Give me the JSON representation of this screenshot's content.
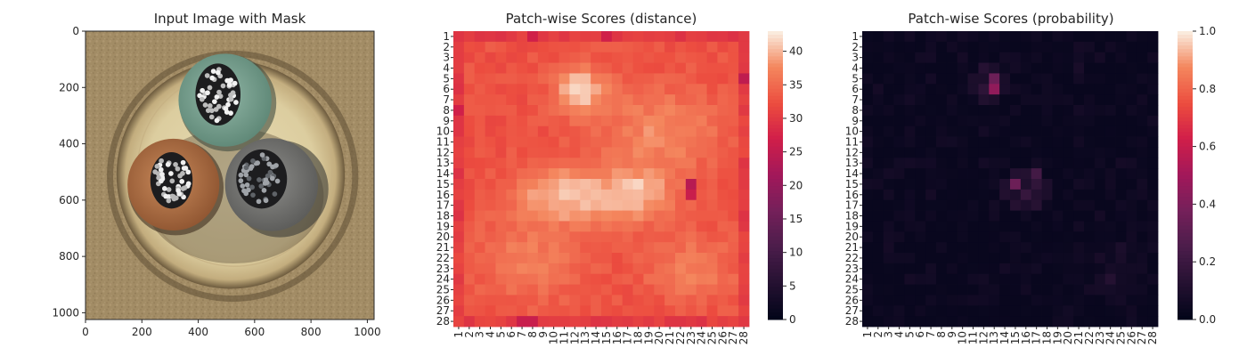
{
  "chart_data": [
    {
      "type": "image",
      "title": "Input Image with Mask",
      "x_ticks": [
        "0",
        "200",
        "400",
        "600",
        "800",
        "1000"
      ],
      "y_ticks": [
        "0",
        "200",
        "400",
        "600",
        "800",
        "1000"
      ],
      "xlim": [
        0,
        1024
      ],
      "ylim": [
        1024,
        0
      ],
      "content": "metal cable cross-section: three insulated conductors (green, orange-brown, grey) inside a beige outer sheath on a brown textured background",
      "colors": {
        "background": "#a08a63",
        "ring_outer": "#c9b686",
        "ring_inner": "#ddcfa3",
        "conductor_green": "#7fa597",
        "conductor_orange": "#b9794d",
        "conductor_grey": "#7d7d7b",
        "wires": "#d9d9d9"
      }
    },
    {
      "type": "heatmap",
      "title": "Patch-wise Scores (distance)",
      "rows": 28,
      "cols": 28,
      "row_labels": [
        "1",
        "2",
        "3",
        "4",
        "5",
        "6",
        "7",
        "8",
        "9",
        "10",
        "11",
        "12",
        "13",
        "14",
        "15",
        "16",
        "17",
        "18",
        "19",
        "20",
        "21",
        "22",
        "23",
        "24",
        "25",
        "26",
        "27",
        "28"
      ],
      "col_labels": [
        "1",
        "2",
        "3",
        "4",
        "5",
        "6",
        "7",
        "8",
        "9",
        "10",
        "11",
        "12",
        "13",
        "14",
        "15",
        "16",
        "17",
        "18",
        "19",
        "20",
        "21",
        "22",
        "23",
        "24",
        "25",
        "26",
        "27",
        "28"
      ],
      "vmin": 0,
      "vmax": 43,
      "colorbar_ticks": [
        "0",
        "5",
        "10",
        "15",
        "20",
        "25",
        "30",
        "35",
        "40"
      ],
      "colorbar_values": [
        0,
        5,
        10,
        15,
        20,
        25,
        30,
        35,
        40
      ],
      "colormap": "rocket",
      "notable_values": {
        "border_typical": 30,
        "bright_blob_center": 42,
        "low_cell_r15_c23": 24,
        "low_cell_r5_c28": 25
      }
    },
    {
      "type": "heatmap",
      "title": "Patch-wise Scores (probability)",
      "rows": 28,
      "cols": 28,
      "row_labels": [
        "1",
        "2",
        "3",
        "4",
        "5",
        "6",
        "7",
        "8",
        "9",
        "10",
        "11",
        "12",
        "13",
        "14",
        "15",
        "16",
        "17",
        "18",
        "19",
        "20",
        "21",
        "22",
        "23",
        "24",
        "25",
        "26",
        "27",
        "28"
      ],
      "col_labels": [
        "1",
        "2",
        "3",
        "4",
        "5",
        "6",
        "7",
        "8",
        "9",
        "10",
        "11",
        "12",
        "13",
        "14",
        "15",
        "16",
        "17",
        "18",
        "19",
        "20",
        "21",
        "22",
        "23",
        "24",
        "25",
        "26",
        "27",
        "28"
      ],
      "vmin": 0,
      "vmax": 1,
      "colorbar_ticks": [
        "0.0",
        "0.2",
        "0.4",
        "0.6",
        "0.8",
        "1.0"
      ],
      "colorbar_values": [
        0,
        0.2,
        0.4,
        0.6,
        0.8,
        1.0
      ],
      "colormap": "rocket",
      "hotspots": [
        {
          "row": 6,
          "col": 13,
          "value": 0.45
        },
        {
          "row": 5,
          "col": 13,
          "value": 0.35
        },
        {
          "row": 15,
          "col": 15,
          "value": 0.35
        },
        {
          "row": 14,
          "col": 17,
          "value": 0.22
        },
        {
          "row": 16,
          "col": 16,
          "value": 0.18
        },
        {
          "row": 15,
          "col": 17,
          "value": 0.16
        },
        {
          "row": 6,
          "col": 12,
          "value": 0.15
        },
        {
          "row": 24,
          "col": 24,
          "value": 0.12
        },
        {
          "row": 4,
          "col": 21,
          "value": 0.08
        }
      ]
    }
  ]
}
